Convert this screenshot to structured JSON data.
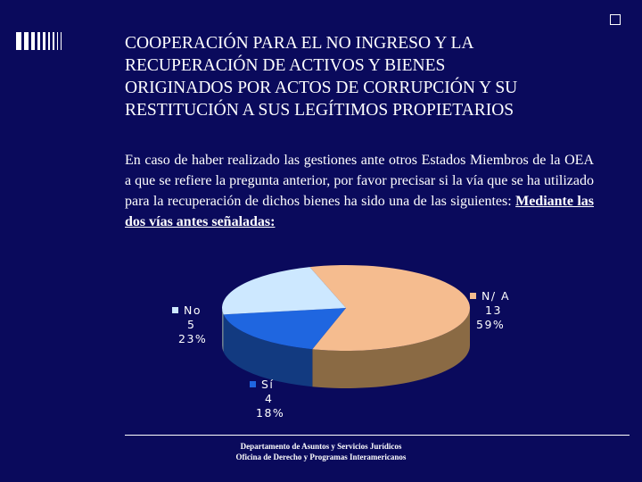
{
  "title_lines": [
    "COOPERACIÓN PARA EL NO INGRESO Y LA",
    "RECUPERACIÓN DE ACTIVOS Y BIENES",
    "ORIGINADOS POR ACTOS DE CORRUPCIÓN Y SU",
    "RESTITUCIÓN A SUS LEGÍTIMOS PROPIETARIOS"
  ],
  "body": {
    "text": "En caso de haber realizado las gestiones ante otros Estados Miembros de la OEA a que se refiere la pregunta anterior, por favor precisar si la vía que se ha utilizado para la recuperación de dichos bienes ha sido una de las siguientes:",
    "emphasis": "Mediante las dos vías antes señaladas:"
  },
  "chart_data": {
    "type": "pie",
    "title": "",
    "slices": [
      {
        "label": "N/ A",
        "value": 13,
        "percent": "59%",
        "color": "#f5bc8f",
        "side_color": "#8a6a44"
      },
      {
        "label": "Sí",
        "value": 4,
        "percent": "18%",
        "color": "#1f66e0",
        "side_color": "#123a80"
      },
      {
        "label": "No",
        "value": 5,
        "percent": "23%",
        "color": "#cde8ff",
        "side_color": "#6a7f8f"
      }
    ]
  },
  "footer": {
    "line1": "Departamento de Asuntos y Servicios Jurídicos",
    "line2": "Oficina de Derecho y Programas Interamericanos"
  },
  "colors": {
    "background": "#0a0a5c",
    "text": "#ffffff"
  }
}
